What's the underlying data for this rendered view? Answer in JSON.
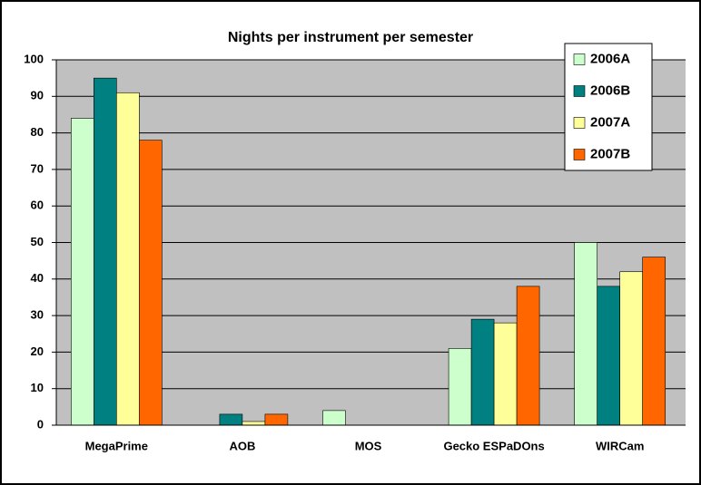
{
  "chart_data": {
    "type": "bar",
    "title": "Nights per instrument per semester",
    "categories": [
      "MegaPrime",
      "AOB",
      "MOS",
      "Gecko ESPaDOns",
      "WIRCam"
    ],
    "series": [
      {
        "name": "2006A",
        "color": "#ccffcc",
        "values": [
          84,
          0,
          4,
          21,
          50
        ]
      },
      {
        "name": "2006B",
        "color": "#008080",
        "values": [
          95,
          3,
          0,
          29,
          38
        ]
      },
      {
        "name": "2007A",
        "color": "#ffff99",
        "values": [
          91,
          1,
          0,
          28,
          42
        ]
      },
      {
        "name": "2007B",
        "color": "#ff6600",
        "values": [
          78,
          3,
          0,
          38,
          46
        ]
      }
    ],
    "ylim": [
      0,
      100
    ],
    "yticks": [
      0,
      10,
      20,
      30,
      40,
      50,
      60,
      70,
      80,
      90,
      100
    ],
    "grid": true,
    "legend": "top-right"
  }
}
